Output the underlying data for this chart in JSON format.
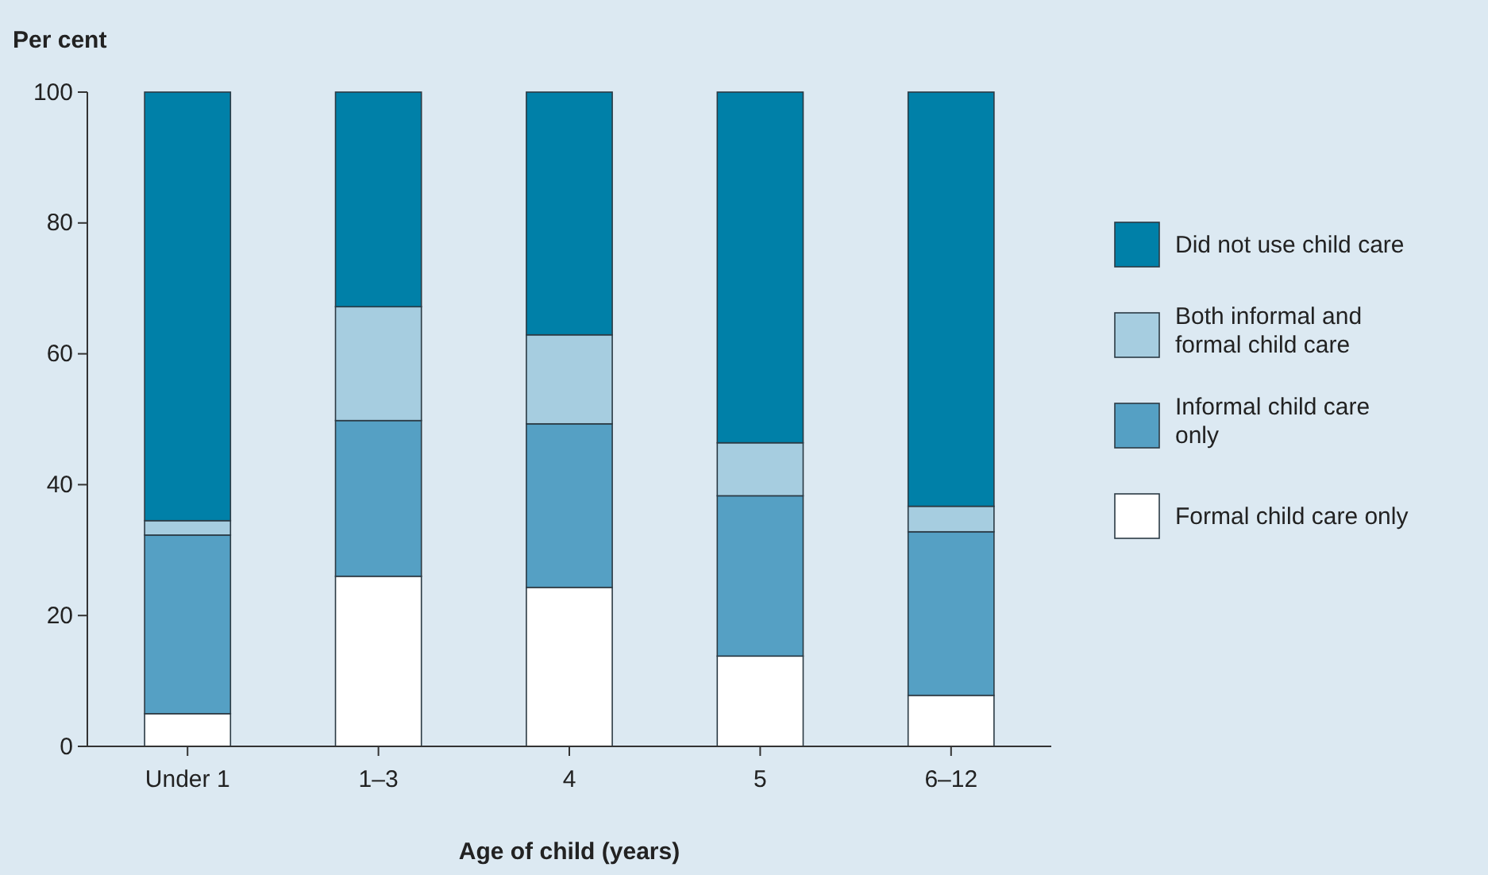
{
  "chart_data": {
    "type": "bar",
    "stacked": true,
    "xlabel": "Age of child (years)",
    "ylabel": "Per cent",
    "categories": [
      "Under 1",
      "1–3",
      "4",
      "5",
      "6–12"
    ],
    "series": [
      {
        "name": "Formal child care only",
        "color": "#ffffff",
        "values": [
          5,
          26,
          24.3,
          13.8,
          7.8
        ]
      },
      {
        "name": "Informal child care only",
        "color": "#55a0c4",
        "values": [
          27.3,
          23.8,
          25,
          24.5,
          25
        ]
      },
      {
        "name": "Both informal and formal child care",
        "color": "#a6cde0",
        "values": [
          2.2,
          17.4,
          13.6,
          8.1,
          3.9
        ]
      },
      {
        "name": "Did not use child care",
        "color": "#0080a8",
        "values": [
          65.5,
          32.8,
          37.1,
          53.6,
          63.3
        ]
      }
    ],
    "ylim": [
      0,
      100
    ],
    "yticks": [
      0,
      20,
      40,
      60,
      80,
      100
    ],
    "legend": "right"
  }
}
